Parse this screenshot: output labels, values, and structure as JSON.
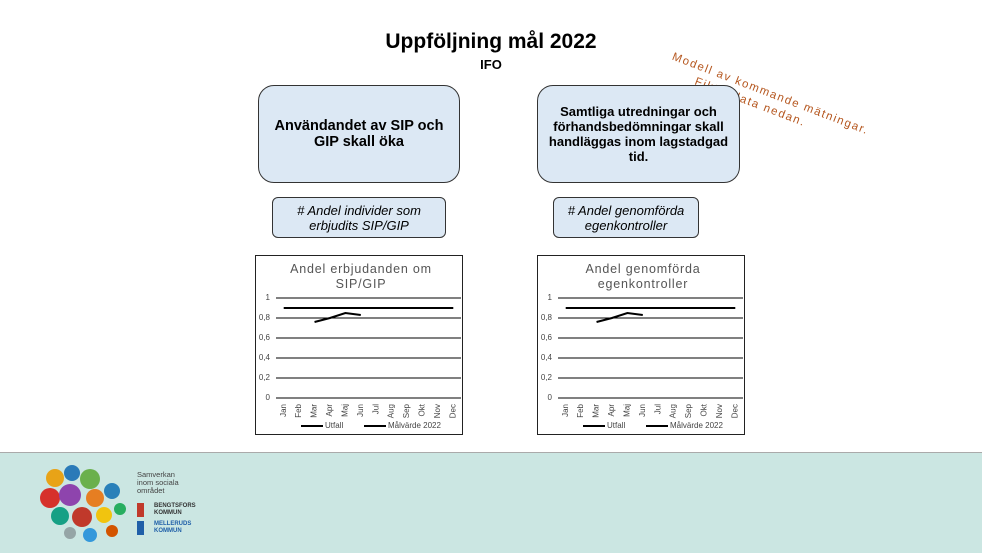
{
  "slide": {
    "title": "Uppföljning mål 2022",
    "subtitle": "IFO",
    "note": [
      "Modell av kommande mätningar.",
      "Fiktiv data nedan."
    ]
  },
  "goals": [
    {
      "goal": "Användandet av SIP och GIP skall öka",
      "measure": "# Andel individer som erbjudits SIP/GIP"
    },
    {
      "goal": "Samtliga utredningar och förhandsbedömningar skall handläggas inom lagstadgad tid.",
      "measure": "# Andel genomförda egenkontroller"
    }
  ],
  "footer": {
    "lines": [
      "Samverkan",
      "inom sociala",
      "området"
    ],
    "municipalities": [
      "BENGTSFORS KOMMUN",
      "MELLERUDS KOMMUN"
    ]
  },
  "chart_data": [
    {
      "type": "line",
      "title": "Andel erbjudanden om SIP/GIP",
      "categories": [
        "Jan",
        "Feb",
        "Mar",
        "Apr",
        "Maj",
        "Jun",
        "Jul",
        "Aug",
        "Sep",
        "Okt",
        "Nov",
        "Dec"
      ],
      "series": [
        {
          "name": "Utfall",
          "color": "#000000",
          "values": [
            null,
            null,
            0.76,
            0.8,
            0.85,
            0.83,
            null,
            null,
            null,
            null,
            null,
            null
          ]
        },
        {
          "name": "Målvärde 2022",
          "color": "#000000",
          "values": [
            0.9,
            0.9,
            0.9,
            0.9,
            0.9,
            0.9,
            0.9,
            0.9,
            0.9,
            0.9,
            0.9,
            0.9
          ]
        }
      ],
      "ylim": [
        0,
        1
      ],
      "yticks": [
        0,
        {
          "value": 0.2,
          "label": "0,2"
        },
        {
          "value": 0.4,
          "label": "0,4"
        },
        {
          "value": 0.6,
          "label": "0,6"
        },
        {
          "value": 0.8,
          "label": "0,8"
        },
        1
      ],
      "grid": true,
      "legend": "bottom"
    },
    {
      "type": "line",
      "title": "Andel genomförda egenkontroller",
      "categories": [
        "Jan",
        "Feb",
        "Mar",
        "Apr",
        "Maj",
        "Jun",
        "Jul",
        "Aug",
        "Sep",
        "Okt",
        "Nov",
        "Dec"
      ],
      "series": [
        {
          "name": "Utfall",
          "color": "#000000",
          "values": [
            null,
            null,
            0.76,
            0.8,
            0.85,
            0.83,
            null,
            null,
            null,
            null,
            null,
            null
          ]
        },
        {
          "name": "Målvärde 2022",
          "color": "#000000",
          "values": [
            0.9,
            0.9,
            0.9,
            0.9,
            0.9,
            0.9,
            0.9,
            0.9,
            0.9,
            0.9,
            0.9,
            0.9
          ]
        }
      ],
      "ylim": [
        0,
        1
      ],
      "yticks": [
        0,
        {
          "value": 0.2,
          "label": "0,2"
        },
        {
          "value": 0.4,
          "label": "0,4"
        },
        {
          "value": 0.6,
          "label": "0,6"
        },
        {
          "value": 0.8,
          "label": "0,8"
        },
        1
      ],
      "grid": true,
      "legend": "bottom"
    }
  ]
}
